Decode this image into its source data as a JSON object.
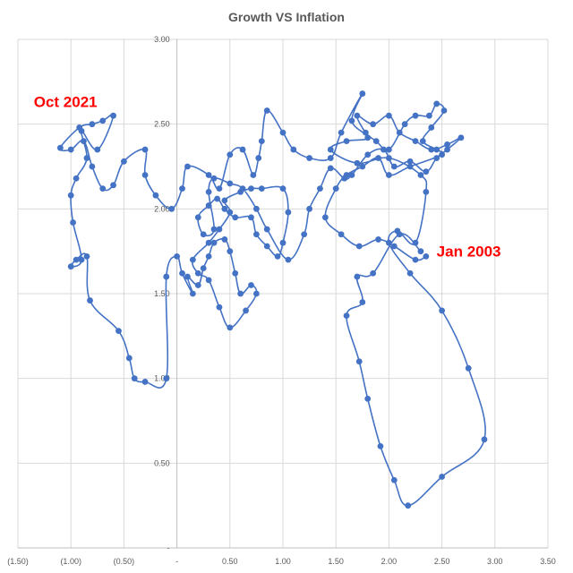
{
  "chart_data": {
    "type": "scatter",
    "title": "Growth VS Inflation",
    "xlabel": "",
    "ylabel": "",
    "xlim": [
      -1.5,
      3.5
    ],
    "ylim": [
      0,
      3.0
    ],
    "x_ticks": [
      -1.5,
      -1.0,
      -0.5,
      0,
      0.5,
      1.0,
      1.5,
      2.0,
      2.5,
      3.0,
      3.5
    ],
    "x_tick_labels": [
      "(1.50)",
      "(1.00)",
      "(0.50)",
      "-",
      "0.50",
      "1.00",
      "1.50",
      "2.00",
      "2.50",
      "3.00",
      "3.50"
    ],
    "y_ticks": [
      0,
      0.5,
      1.0,
      1.5,
      2.0,
      2.5,
      3.0
    ],
    "y_tick_labels": [
      "-",
      "0.50",
      "1.00",
      "1.50",
      "2.00",
      "2.50",
      "3.00"
    ],
    "grid": true,
    "series_color": "#4472c4",
    "annotations": [
      {
        "text": "Oct 2021",
        "x": -1.35,
        "y": 2.6,
        "color": "#ff0000"
      },
      {
        "text": "Jan 2003",
        "x": 2.45,
        "y": 1.72,
        "color": "#ff0000"
      }
    ],
    "points": [
      [
        2.3,
        1.75
      ],
      [
        2.1,
        1.85
      ],
      [
        1.85,
        1.62
      ],
      [
        1.7,
        1.6
      ],
      [
        1.75,
        1.45
      ],
      [
        1.6,
        1.37
      ],
      [
        1.72,
        1.1
      ],
      [
        1.8,
        0.88
      ],
      [
        1.92,
        0.6
      ],
      [
        2.05,
        0.4
      ],
      [
        2.18,
        0.25
      ],
      [
        2.5,
        0.42
      ],
      [
        2.9,
        0.64
      ],
      [
        2.75,
        1.06
      ],
      [
        2.5,
        1.4
      ],
      [
        2.2,
        1.62
      ],
      [
        2.0,
        1.8
      ],
      [
        2.08,
        1.87
      ],
      [
        2.25,
        1.8
      ],
      [
        2.35,
        2.1
      ],
      [
        2.3,
        2.2
      ],
      [
        2.0,
        2.3
      ],
      [
        1.7,
        2.27
      ],
      [
        1.45,
        2.35
      ],
      [
        1.6,
        2.4
      ],
      [
        1.8,
        2.42
      ],
      [
        1.65,
        2.52
      ],
      [
        1.75,
        2.68
      ],
      [
        1.55,
        2.45
      ],
      [
        1.45,
        2.3
      ],
      [
        1.25,
        2.3
      ],
      [
        1.1,
        2.35
      ],
      [
        1.0,
        2.45
      ],
      [
        0.85,
        2.58
      ],
      [
        0.8,
        2.4
      ],
      [
        0.77,
        2.3
      ],
      [
        0.72,
        2.2
      ],
      [
        0.62,
        2.35
      ],
      [
        0.5,
        2.32
      ],
      [
        0.4,
        2.12
      ],
      [
        0.3,
        2.2
      ],
      [
        0.1,
        2.25
      ],
      [
        0.05,
        2.12
      ],
      [
        -0.05,
        2.0
      ],
      [
        -0.2,
        2.08
      ],
      [
        -0.3,
        2.2
      ],
      [
        -0.3,
        2.35
      ],
      [
        -0.5,
        2.28
      ],
      [
        -0.6,
        2.14
      ],
      [
        -0.7,
        2.12
      ],
      [
        -0.8,
        2.25
      ],
      [
        -0.88,
        2.4
      ],
      [
        -1.0,
        2.35
      ],
      [
        -1.1,
        2.36
      ],
      [
        -0.92,
        2.48
      ],
      [
        -0.8,
        2.5
      ],
      [
        -0.7,
        2.52
      ],
      [
        -0.6,
        2.55
      ],
      [
        -0.75,
        2.35
      ],
      [
        -0.9,
        2.46
      ],
      [
        -0.85,
        2.3
      ],
      [
        -0.95,
        2.18
      ],
      [
        -1.0,
        2.08
      ],
      [
        -0.98,
        1.92
      ],
      [
        -0.9,
        1.7
      ],
      [
        -1.0,
        1.66
      ],
      [
        -0.95,
        1.7
      ],
      [
        -0.85,
        1.72
      ],
      [
        -0.82,
        1.46
      ],
      [
        -0.55,
        1.28
      ],
      [
        -0.45,
        1.12
      ],
      [
        -0.4,
        1.0
      ],
      [
        -0.3,
        0.98
      ],
      [
        -0.1,
        1.0
      ],
      [
        -0.1,
        1.6
      ],
      [
        0.0,
        1.72
      ],
      [
        0.05,
        1.62
      ],
      [
        0.15,
        1.5
      ],
      [
        0.1,
        1.6
      ],
      [
        0.2,
        1.55
      ],
      [
        0.25,
        1.65
      ],
      [
        0.3,
        1.72
      ],
      [
        0.35,
        1.8
      ],
      [
        0.45,
        1.82
      ],
      [
        0.5,
        1.75
      ],
      [
        0.55,
        1.62
      ],
      [
        0.6,
        1.5
      ],
      [
        0.7,
        1.55
      ],
      [
        0.75,
        1.5
      ],
      [
        0.65,
        1.4
      ],
      [
        0.5,
        1.3
      ],
      [
        0.4,
        1.42
      ],
      [
        0.3,
        1.58
      ],
      [
        0.2,
        1.62
      ],
      [
        0.15,
        1.7
      ],
      [
        0.3,
        1.8
      ],
      [
        0.4,
        1.88
      ],
      [
        0.5,
        1.98
      ],
      [
        0.45,
        2.05
      ],
      [
        0.6,
        2.1
      ],
      [
        0.7,
        2.12
      ],
      [
        0.8,
        2.12
      ],
      [
        1.0,
        2.12
      ],
      [
        1.05,
        1.98
      ],
      [
        1.0,
        1.8
      ],
      [
        0.95,
        1.72
      ],
      [
        0.85,
        1.78
      ],
      [
        0.75,
        1.85
      ],
      [
        0.7,
        1.95
      ],
      [
        0.55,
        1.95
      ],
      [
        0.45,
        2.0
      ],
      [
        0.38,
        2.06
      ],
      [
        0.3,
        2.02
      ],
      [
        0.2,
        1.95
      ],
      [
        0.25,
        1.85
      ],
      [
        0.35,
        1.88
      ],
      [
        0.3,
        2.1
      ],
      [
        0.35,
        2.18
      ],
      [
        0.5,
        2.15
      ],
      [
        0.62,
        2.12
      ],
      [
        0.75,
        2.0
      ],
      [
        0.85,
        1.88
      ],
      [
        1.05,
        1.7
      ],
      [
        1.2,
        1.85
      ],
      [
        1.25,
        2.0
      ],
      [
        1.35,
        2.12
      ],
      [
        1.45,
        2.24
      ],
      [
        1.58,
        2.18
      ],
      [
        1.65,
        2.2
      ],
      [
        1.8,
        2.32
      ],
      [
        1.95,
        2.35
      ],
      [
        2.05,
        2.25
      ],
      [
        2.2,
        2.28
      ],
      [
        2.35,
        2.22
      ],
      [
        2.45,
        2.3
      ],
      [
        2.55,
        2.35
      ],
      [
        2.68,
        2.42
      ],
      [
        2.55,
        2.38
      ],
      [
        2.4,
        2.35
      ],
      [
        2.25,
        2.4
      ],
      [
        2.1,
        2.45
      ],
      [
        2.0,
        2.55
      ],
      [
        1.85,
        2.5
      ],
      [
        1.7,
        2.55
      ],
      [
        1.78,
        2.45
      ],
      [
        1.88,
        2.4
      ],
      [
        2.0,
        2.35
      ],
      [
        2.15,
        2.5
      ],
      [
        2.25,
        2.55
      ],
      [
        2.38,
        2.55
      ],
      [
        2.45,
        2.62
      ],
      [
        2.52,
        2.58
      ],
      [
        2.4,
        2.48
      ],
      [
        2.32,
        2.4
      ],
      [
        2.45,
        2.35
      ],
      [
        2.5,
        2.32
      ],
      [
        2.2,
        2.25
      ],
      [
        2.0,
        2.2
      ],
      [
        1.9,
        2.3
      ],
      [
        1.75,
        2.25
      ],
      [
        1.6,
        2.2
      ],
      [
        1.5,
        2.12
      ],
      [
        1.4,
        1.95
      ],
      [
        1.55,
        1.85
      ],
      [
        1.72,
        1.78
      ],
      [
        1.9,
        1.82
      ],
      [
        2.05,
        1.78
      ],
      [
        2.25,
        1.7
      ],
      [
        2.35,
        1.72
      ]
    ]
  }
}
